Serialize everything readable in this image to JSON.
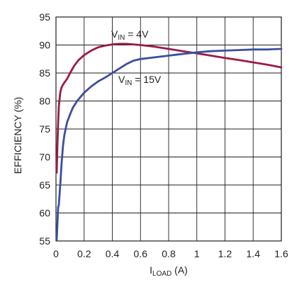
{
  "chart_data": {
    "type": "line",
    "title": "",
    "xlabel": {
      "main": "I",
      "sub": "LOAD",
      "unit": " (A)"
    },
    "ylabel": "EFFICIENCY (%)",
    "xlim": [
      0,
      1.6
    ],
    "ylim": [
      55,
      95
    ],
    "x_ticks": [
      0,
      0.2,
      0.4,
      0.6,
      0.8,
      1,
      1.2,
      1.4,
      1.6
    ],
    "x_tick_labels": [
      "0",
      "0.2",
      "0.4",
      "0.6",
      "0.8",
      "1",
      "1.2",
      "1.4",
      "1.6"
    ],
    "y_ticks": [
      55,
      60,
      65,
      70,
      75,
      80,
      85,
      90,
      95
    ],
    "y_tick_labels": [
      "55",
      "60",
      "65",
      "70",
      "75",
      "80",
      "85",
      "90",
      "95"
    ],
    "grid": true,
    "series": [
      {
        "name": "VIN = 4V",
        "label": {
          "main": "V",
          "sub": "IN",
          "rest": " = 4V"
        },
        "color": "#9b1b4a",
        "points": [
          [
            0.005,
            67.2
          ],
          [
            0.01,
            72
          ],
          [
            0.015,
            76
          ],
          [
            0.02,
            79
          ],
          [
            0.03,
            81.5
          ],
          [
            0.04,
            82.5
          ],
          [
            0.06,
            83.3
          ],
          [
            0.08,
            84.0
          ],
          [
            0.1,
            85.0
          ],
          [
            0.13,
            86.3
          ],
          [
            0.16,
            87.3
          ],
          [
            0.2,
            88.2
          ],
          [
            0.25,
            89.0
          ],
          [
            0.3,
            89.6
          ],
          [
            0.35,
            89.9
          ],
          [
            0.4,
            90.1
          ],
          [
            0.45,
            90.2
          ],
          [
            0.5,
            90.2
          ],
          [
            0.6,
            90.0
          ],
          [
            0.7,
            89.7
          ],
          [
            0.8,
            89.3
          ],
          [
            0.9,
            88.9
          ],
          [
            1.0,
            88.5
          ],
          [
            1.1,
            88.1
          ],
          [
            1.2,
            87.7
          ],
          [
            1.3,
            87.3
          ],
          [
            1.4,
            86.9
          ],
          [
            1.5,
            86.5
          ],
          [
            1.6,
            86.0
          ]
        ]
      },
      {
        "name": "VIN = 15V",
        "label": {
          "main": "V",
          "sub": "IN",
          "rest": " = 15V"
        },
        "color": "#3c4f9c",
        "points": [
          [
            0.005,
            55.2
          ],
          [
            0.01,
            58
          ],
          [
            0.015,
            61.0
          ],
          [
            0.02,
            61.4
          ],
          [
            0.03,
            65
          ],
          [
            0.04,
            69
          ],
          [
            0.05,
            72
          ],
          [
            0.06,
            74
          ],
          [
            0.08,
            76.3
          ],
          [
            0.1,
            77.6
          ],
          [
            0.12,
            78.8
          ],
          [
            0.15,
            80.0
          ],
          [
            0.2,
            81.5
          ],
          [
            0.25,
            82.6
          ],
          [
            0.3,
            83.5
          ],
          [
            0.35,
            84.2
          ],
          [
            0.4,
            85.0
          ],
          [
            0.45,
            85.8
          ],
          [
            0.5,
            86.6
          ],
          [
            0.55,
            87.2
          ],
          [
            0.6,
            87.5
          ],
          [
            0.7,
            87.8
          ],
          [
            0.8,
            88.1
          ],
          [
            0.9,
            88.4
          ],
          [
            1.0,
            88.7
          ],
          [
            1.1,
            88.9
          ],
          [
            1.2,
            89.0
          ],
          [
            1.3,
            89.1
          ],
          [
            1.4,
            89.2
          ],
          [
            1.5,
            89.2
          ],
          [
            1.6,
            89.3
          ]
        ]
      }
    ]
  }
}
